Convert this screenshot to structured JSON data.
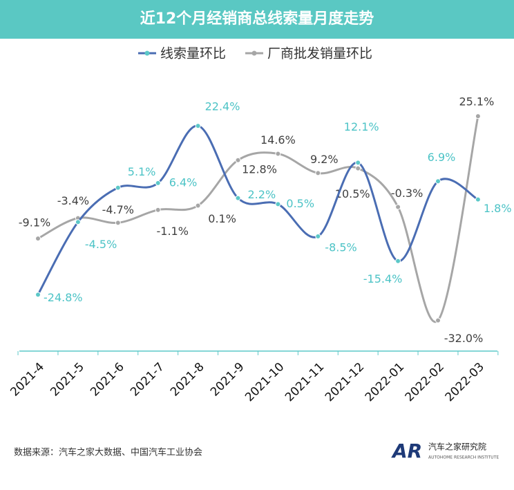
{
  "chart_data": {
    "type": "line",
    "title": "近12个月经销商总线索量月度走势",
    "categories": [
      "2021-4",
      "2021-5",
      "2021-6",
      "2021-7",
      "2021-8",
      "2021-9",
      "2021-10",
      "2021-11",
      "2021-12",
      "2022-01",
      "2022-02",
      "2022-03"
    ],
    "series": [
      {
        "name": "线索量环比",
        "color": "#4a6db3",
        "marker_color": "#5cc8c8",
        "label_color": "#4cc3c6",
        "values": [
          -24.8,
          -4.5,
          5.1,
          6.4,
          22.4,
          2.2,
          0.5,
          -8.5,
          12.1,
          -15.4,
          6.9,
          1.8
        ],
        "value_labels": [
          "-24.8%",
          "-4.5%",
          "5.1%",
          "6.4%",
          "22.4%",
          "2.2%",
          "0.5%",
          "-8.5%",
          "12.1%",
          "-15.4%",
          "6.9%",
          "1.8%"
        ]
      },
      {
        "name": "厂商批发销量环比",
        "color": "#a6a6a6",
        "marker_color": "#a6a6a6",
        "label_color": "#404040",
        "values": [
          -9.1,
          -3.4,
          -4.7,
          -1.1,
          0.1,
          12.8,
          14.6,
          9.2,
          10.5,
          -0.3,
          -32.0,
          25.1
        ],
        "value_labels": [
          "-9.1%",
          "-3.4%",
          "-4.7%",
          "-1.1%",
          "0.1%",
          "12.8%",
          "14.6%",
          "9.2%",
          "10.5%",
          "-0.3%",
          "-32.0%",
          "25.1%"
        ]
      }
    ],
    "ylim": [
      -40,
      40
    ],
    "source": "数据来源：汽车之家大数据、中国汽车工业协会",
    "logo": {
      "mark": "AR",
      "name": "汽车之家研究院",
      "subtitle": "AUTOHOME RESEARCH INSTITUTE"
    }
  }
}
